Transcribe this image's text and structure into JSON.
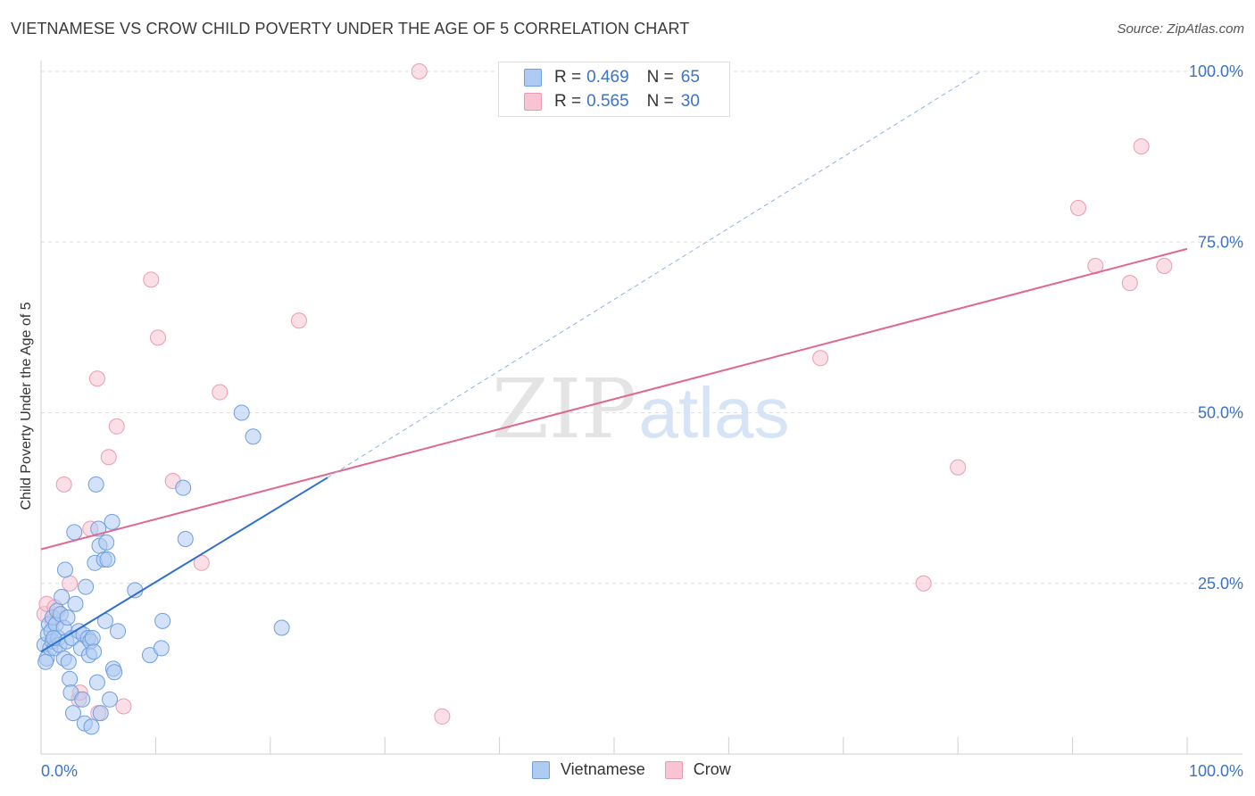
{
  "title": "VIETNAMESE VS CROW CHILD POVERTY UNDER THE AGE OF 5 CORRELATION CHART",
  "source": "Source: ZipAtlas.com",
  "watermark": {
    "zip": "ZIP",
    "atlas": "atlas"
  },
  "colors": {
    "vietnamese_fill": "#aecbf2",
    "vietnamese_stroke": "#6f9fdc",
    "vietnamese_line": "#2f6fcf",
    "crow_fill": "#f8c4d4",
    "crow_stroke": "#ec9ab3",
    "crow_line": "#e06792",
    "tick_label": "#3b73c8",
    "grid": "#dedede"
  },
  "legend": {
    "rows": [
      {
        "r_label": "R =",
        "r_value": "0.469",
        "n_label": "N =",
        "n_value": "65"
      },
      {
        "r_label": "R =",
        "r_value": "0.565",
        "n_label": "N =",
        "n_value": "30"
      }
    ]
  },
  "bottom_legend": [
    "Vietnamese",
    "Crow"
  ],
  "chart_data": {
    "type": "scatter",
    "title": "VIETNAMESE VS CROW CHILD POVERTY UNDER THE AGE OF 5 CORRELATION CHART",
    "xlabel": "",
    "ylabel": "Child Poverty Under the Age of 5",
    "xlim": [
      0,
      100
    ],
    "ylim": [
      0,
      100
    ],
    "x_tick_labels": [
      "0.0%",
      "100.0%"
    ],
    "y_tick_labels": [
      "25.0%",
      "50.0%",
      "75.0%",
      "100.0%"
    ],
    "y_ticks": [
      25,
      50,
      75,
      100
    ],
    "grid": true,
    "legend_position": "top-center",
    "series": [
      {
        "name": "Vietnamese",
        "r": 0.469,
        "n": 65,
        "trend": {
          "x": [
            0,
            25
          ],
          "y": [
            15.0,
            40.5
          ],
          "extended_to": [
            82,
            100
          ]
        },
        "points": [
          [
            0.3,
            16.0
          ],
          [
            0.5,
            14.0
          ],
          [
            0.6,
            17.5
          ],
          [
            0.7,
            19.0
          ],
          [
            0.8,
            15.5
          ],
          [
            0.9,
            18.0
          ],
          [
            1.0,
            16.5
          ],
          [
            1.0,
            20.0
          ],
          [
            1.2,
            15.5
          ],
          [
            1.3,
            19.0
          ],
          [
            1.4,
            21.0
          ],
          [
            1.5,
            17.0
          ],
          [
            1.6,
            16.0
          ],
          [
            1.7,
            20.5
          ],
          [
            1.8,
            23.0
          ],
          [
            2.0,
            14.0
          ],
          [
            2.0,
            18.5
          ],
          [
            2.1,
            27.0
          ],
          [
            2.2,
            16.5
          ],
          [
            2.3,
            20.0
          ],
          [
            2.4,
            13.5
          ],
          [
            2.5,
            11.0
          ],
          [
            2.6,
            9.0
          ],
          [
            2.7,
            17.0
          ],
          [
            2.8,
            6.0
          ],
          [
            2.9,
            32.5
          ],
          [
            3.0,
            22.0
          ],
          [
            3.3,
            18.0
          ],
          [
            3.5,
            15.5
          ],
          [
            3.6,
            8.0
          ],
          [
            3.7,
            17.5
          ],
          [
            3.8,
            4.5
          ],
          [
            3.9,
            24.5
          ],
          [
            4.1,
            17.0
          ],
          [
            4.2,
            14.5
          ],
          [
            4.3,
            16.5
          ],
          [
            4.4,
            4.0
          ],
          [
            4.5,
            17.0
          ],
          [
            4.6,
            15.0
          ],
          [
            4.7,
            28.0
          ],
          [
            4.8,
            39.5
          ],
          [
            4.9,
            10.5
          ],
          [
            5.0,
            33.0
          ],
          [
            5.1,
            30.5
          ],
          [
            5.2,
            6.0
          ],
          [
            5.5,
            28.5
          ],
          [
            5.6,
            19.5
          ],
          [
            5.7,
            31.0
          ],
          [
            5.8,
            28.5
          ],
          [
            6.0,
            8.0
          ],
          [
            6.2,
            34.0
          ],
          [
            6.3,
            12.5
          ],
          [
            6.4,
            12.0
          ],
          [
            6.7,
            18.0
          ],
          [
            8.2,
            24.0
          ],
          [
            9.5,
            14.5
          ],
          [
            10.5,
            15.5
          ],
          [
            10.6,
            19.5
          ],
          [
            12.4,
            39.0
          ],
          [
            12.6,
            31.5
          ],
          [
            17.5,
            50.0
          ],
          [
            18.5,
            46.5
          ],
          [
            21.0,
            18.5
          ],
          [
            1.1,
            17.0
          ],
          [
            0.4,
            13.5
          ]
        ]
      },
      {
        "name": "Crow",
        "r": 0.565,
        "n": 30,
        "trend": {
          "x": [
            0,
            100
          ],
          "y": [
            30.0,
            74.0
          ]
        },
        "points": [
          [
            0.3,
            20.5
          ],
          [
            0.5,
            22.0
          ],
          [
            1.0,
            19.5
          ],
          [
            1.2,
            21.5
          ],
          [
            2.0,
            39.5
          ],
          [
            2.5,
            25.0
          ],
          [
            3.3,
            8.0
          ],
          [
            3.4,
            9.0
          ],
          [
            4.3,
            33.0
          ],
          [
            4.9,
            55.0
          ],
          [
            5.0,
            6.0
          ],
          [
            5.9,
            43.5
          ],
          [
            6.6,
            48.0
          ],
          [
            7.2,
            7.0
          ],
          [
            9.6,
            69.5
          ],
          [
            10.2,
            61.0
          ],
          [
            11.5,
            40.0
          ],
          [
            14.0,
            28.0
          ],
          [
            15.6,
            53.0
          ],
          [
            22.5,
            63.5
          ],
          [
            33.0,
            100.0
          ],
          [
            35.0,
            5.5
          ],
          [
            68.0,
            58.0
          ],
          [
            77.0,
            25.0
          ],
          [
            80.0,
            42.0
          ],
          [
            90.5,
            80.0
          ],
          [
            92.0,
            71.5
          ],
          [
            95.0,
            69.0
          ],
          [
            96.0,
            89.0
          ],
          [
            98.0,
            71.5
          ]
        ]
      }
    ]
  }
}
